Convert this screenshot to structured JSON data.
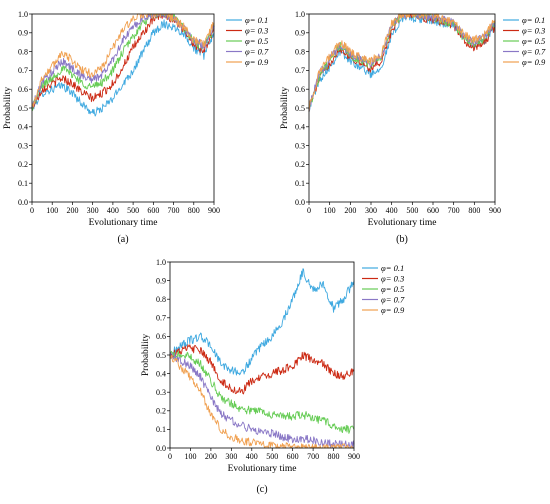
{
  "chart_data": [
    {
      "type": "line",
      "panel_label": "(a)",
      "xlabel": "Evolutionary time",
      "ylabel": "Probability",
      "xlim": [
        0,
        900
      ],
      "ylim": [
        0,
        1.0
      ],
      "xticks": [
        0,
        100,
        200,
        300,
        400,
        500,
        600,
        700,
        800,
        900
      ],
      "yticks": [
        0.0,
        0.1,
        0.2,
        0.3,
        0.4,
        0.5,
        0.6,
        0.7,
        0.8,
        0.9,
        1.0
      ],
      "legend_position": "top-right",
      "series": [
        {
          "name": "φ= 0.1",
          "color": "#3fa9e0",
          "x": [
            0,
            50,
            100,
            150,
            200,
            250,
            300,
            350,
            400,
            450,
            500,
            550,
            600,
            650,
            700,
            750,
            800,
            850,
            900
          ],
          "values": [
            0.5,
            0.58,
            0.6,
            0.62,
            0.58,
            0.52,
            0.47,
            0.5,
            0.55,
            0.63,
            0.7,
            0.8,
            0.9,
            0.95,
            0.93,
            0.9,
            0.82,
            0.78,
            0.9
          ]
        },
        {
          "name": "φ= 0.3",
          "color": "#cc2a14",
          "x": [
            0,
            50,
            100,
            150,
            200,
            250,
            300,
            350,
            400,
            450,
            500,
            550,
            600,
            650,
            700,
            750,
            800,
            850,
            900
          ],
          "values": [
            0.5,
            0.6,
            0.63,
            0.66,
            0.63,
            0.58,
            0.55,
            0.58,
            0.63,
            0.72,
            0.82,
            0.9,
            0.97,
            1.0,
            0.97,
            0.92,
            0.84,
            0.8,
            0.92
          ]
        },
        {
          "name": "φ= 0.5",
          "color": "#66cc55",
          "x": [
            0,
            50,
            100,
            150,
            200,
            250,
            300,
            350,
            400,
            450,
            500,
            550,
            600,
            650,
            700,
            750,
            800,
            850,
            900
          ],
          "values": [
            0.5,
            0.62,
            0.66,
            0.71,
            0.68,
            0.63,
            0.61,
            0.64,
            0.7,
            0.8,
            0.88,
            0.95,
            1.0,
            1.0,
            0.98,
            0.93,
            0.85,
            0.82,
            0.93
          ]
        },
        {
          "name": "φ= 0.7",
          "color": "#8a78c6",
          "x": [
            0,
            50,
            100,
            150,
            200,
            250,
            300,
            350,
            400,
            450,
            500,
            550,
            600,
            650,
            700,
            750,
            800,
            850,
            900
          ],
          "values": [
            0.5,
            0.64,
            0.69,
            0.75,
            0.71,
            0.67,
            0.65,
            0.68,
            0.76,
            0.86,
            0.93,
            0.98,
            1.0,
            1.0,
            0.98,
            0.93,
            0.86,
            0.83,
            0.94
          ]
        },
        {
          "name": "φ= 0.9",
          "color": "#f0a050",
          "x": [
            0,
            50,
            100,
            150,
            200,
            250,
            300,
            350,
            400,
            450,
            500,
            550,
            600,
            650,
            700,
            750,
            800,
            850,
            900
          ],
          "values": [
            0.5,
            0.66,
            0.72,
            0.8,
            0.75,
            0.7,
            0.68,
            0.72,
            0.82,
            0.92,
            0.97,
            1.0,
            1.0,
            1.0,
            0.98,
            0.93,
            0.86,
            0.84,
            0.95
          ]
        }
      ]
    },
    {
      "type": "line",
      "panel_label": "(b)",
      "xlabel": "Evolutionary time",
      "ylabel": "Probability",
      "xlim": [
        0,
        900
      ],
      "ylim": [
        0,
        1.0
      ],
      "xticks": [
        0,
        100,
        200,
        300,
        400,
        500,
        600,
        700,
        800,
        900
      ],
      "yticks": [
        0.0,
        0.1,
        0.2,
        0.3,
        0.4,
        0.5,
        0.6,
        0.7,
        0.8,
        0.9,
        1.0
      ],
      "legend_position": "top-right",
      "series": [
        {
          "name": "φ= 0.1",
          "color": "#3fa9e0",
          "x": [
            0,
            50,
            100,
            150,
            200,
            250,
            300,
            350,
            400,
            450,
            500,
            550,
            600,
            650,
            700,
            750,
            800,
            850,
            900
          ],
          "values": [
            0.5,
            0.65,
            0.72,
            0.8,
            0.75,
            0.72,
            0.68,
            0.72,
            0.88,
            0.98,
            0.98,
            0.97,
            0.96,
            0.95,
            0.94,
            0.88,
            0.84,
            0.86,
            0.94
          ]
        },
        {
          "name": "φ= 0.3",
          "color": "#cc2a14",
          "x": [
            0,
            50,
            100,
            150,
            200,
            250,
            300,
            350,
            400,
            450,
            500,
            550,
            600,
            650,
            700,
            750,
            800,
            850,
            900
          ],
          "values": [
            0.5,
            0.66,
            0.74,
            0.82,
            0.77,
            0.74,
            0.71,
            0.75,
            0.91,
            1.0,
            1.0,
            0.98,
            0.97,
            0.96,
            0.94,
            0.86,
            0.82,
            0.85,
            0.93
          ]
        },
        {
          "name": "φ= 0.5",
          "color": "#66cc55",
          "x": [
            0,
            50,
            100,
            150,
            200,
            250,
            300,
            350,
            400,
            450,
            500,
            550,
            600,
            650,
            700,
            750,
            800,
            850,
            900
          ],
          "values": [
            0.5,
            0.67,
            0.75,
            0.83,
            0.78,
            0.75,
            0.73,
            0.77,
            0.93,
            1.0,
            1.0,
            0.99,
            0.98,
            0.96,
            0.95,
            0.87,
            0.84,
            0.87,
            0.95
          ]
        },
        {
          "name": "φ= 0.7",
          "color": "#8a78c6",
          "x": [
            0,
            50,
            100,
            150,
            200,
            250,
            300,
            350,
            400,
            450,
            500,
            550,
            600,
            650,
            700,
            750,
            800,
            850,
            900
          ],
          "values": [
            0.5,
            0.68,
            0.76,
            0.84,
            0.79,
            0.76,
            0.74,
            0.78,
            0.94,
            1.0,
            1.0,
            0.99,
            0.98,
            0.97,
            0.95,
            0.88,
            0.85,
            0.88,
            0.96
          ]
        },
        {
          "name": "φ= 0.9",
          "color": "#f0a050",
          "x": [
            0,
            50,
            100,
            150,
            200,
            250,
            300,
            350,
            400,
            450,
            500,
            550,
            600,
            650,
            700,
            750,
            800,
            850,
            900
          ],
          "values": [
            0.5,
            0.69,
            0.77,
            0.85,
            0.8,
            0.77,
            0.75,
            0.79,
            0.95,
            1.0,
            1.0,
            1.0,
            0.99,
            0.97,
            0.96,
            0.89,
            0.86,
            0.89,
            0.97
          ]
        }
      ]
    },
    {
      "type": "line",
      "panel_label": "(c)",
      "xlabel": "Evolutionary time",
      "ylabel": "Probability",
      "xlim": [
        0,
        900
      ],
      "ylim": [
        0,
        1.0
      ],
      "xticks": [
        0,
        100,
        200,
        300,
        400,
        500,
        600,
        700,
        800,
        900
      ],
      "yticks": [
        0.0,
        0.1,
        0.2,
        0.3,
        0.4,
        0.5,
        0.6,
        0.7,
        0.8,
        0.9,
        1.0
      ],
      "legend_position": "top-right",
      "series": [
        {
          "name": "φ= 0.1",
          "color": "#3fa9e0",
          "x": [
            0,
            50,
            100,
            150,
            200,
            250,
            300,
            350,
            400,
            450,
            500,
            550,
            600,
            650,
            700,
            750,
            800,
            850,
            900
          ],
          "values": [
            0.5,
            0.55,
            0.58,
            0.6,
            0.55,
            0.45,
            0.42,
            0.4,
            0.48,
            0.55,
            0.6,
            0.68,
            0.8,
            0.95,
            0.85,
            0.88,
            0.75,
            0.8,
            0.9
          ]
        },
        {
          "name": "φ= 0.3",
          "color": "#cc2a14",
          "x": [
            0,
            50,
            100,
            150,
            200,
            250,
            300,
            350,
            400,
            450,
            500,
            550,
            600,
            650,
            700,
            750,
            800,
            850,
            900
          ],
          "values": [
            0.5,
            0.52,
            0.54,
            0.52,
            0.46,
            0.36,
            0.32,
            0.3,
            0.36,
            0.38,
            0.4,
            0.42,
            0.44,
            0.5,
            0.47,
            0.45,
            0.4,
            0.38,
            0.42
          ]
        },
        {
          "name": "φ= 0.5",
          "color": "#66cc55",
          "x": [
            0,
            50,
            100,
            150,
            200,
            250,
            300,
            350,
            400,
            450,
            500,
            550,
            600,
            650,
            700,
            750,
            800,
            850,
            900
          ],
          "values": [
            0.5,
            0.5,
            0.49,
            0.45,
            0.36,
            0.27,
            0.24,
            0.21,
            0.2,
            0.2,
            0.18,
            0.17,
            0.17,
            0.18,
            0.16,
            0.15,
            0.12,
            0.1,
            0.1
          ]
        },
        {
          "name": "φ= 0.7",
          "color": "#8a78c6",
          "x": [
            0,
            50,
            100,
            150,
            200,
            250,
            300,
            350,
            400,
            450,
            500,
            550,
            600,
            650,
            700,
            750,
            800,
            850,
            900
          ],
          "values": [
            0.5,
            0.47,
            0.44,
            0.38,
            0.27,
            0.18,
            0.15,
            0.12,
            0.1,
            0.09,
            0.08,
            0.06,
            0.05,
            0.05,
            0.04,
            0.03,
            0.02,
            0.02,
            0.02
          ]
        },
        {
          "name": "φ= 0.9",
          "color": "#f0a050",
          "x": [
            0,
            50,
            100,
            150,
            200,
            250,
            300,
            350,
            400,
            450,
            500,
            550,
            600,
            650,
            700,
            750,
            800,
            850,
            900
          ],
          "values": [
            0.5,
            0.44,
            0.38,
            0.3,
            0.18,
            0.1,
            0.06,
            0.04,
            0.03,
            0.02,
            0.01,
            0.01,
            0.01,
            0.0,
            0.0,
            0.0,
            0.0,
            0.0,
            0.0
          ]
        }
      ]
    }
  ]
}
